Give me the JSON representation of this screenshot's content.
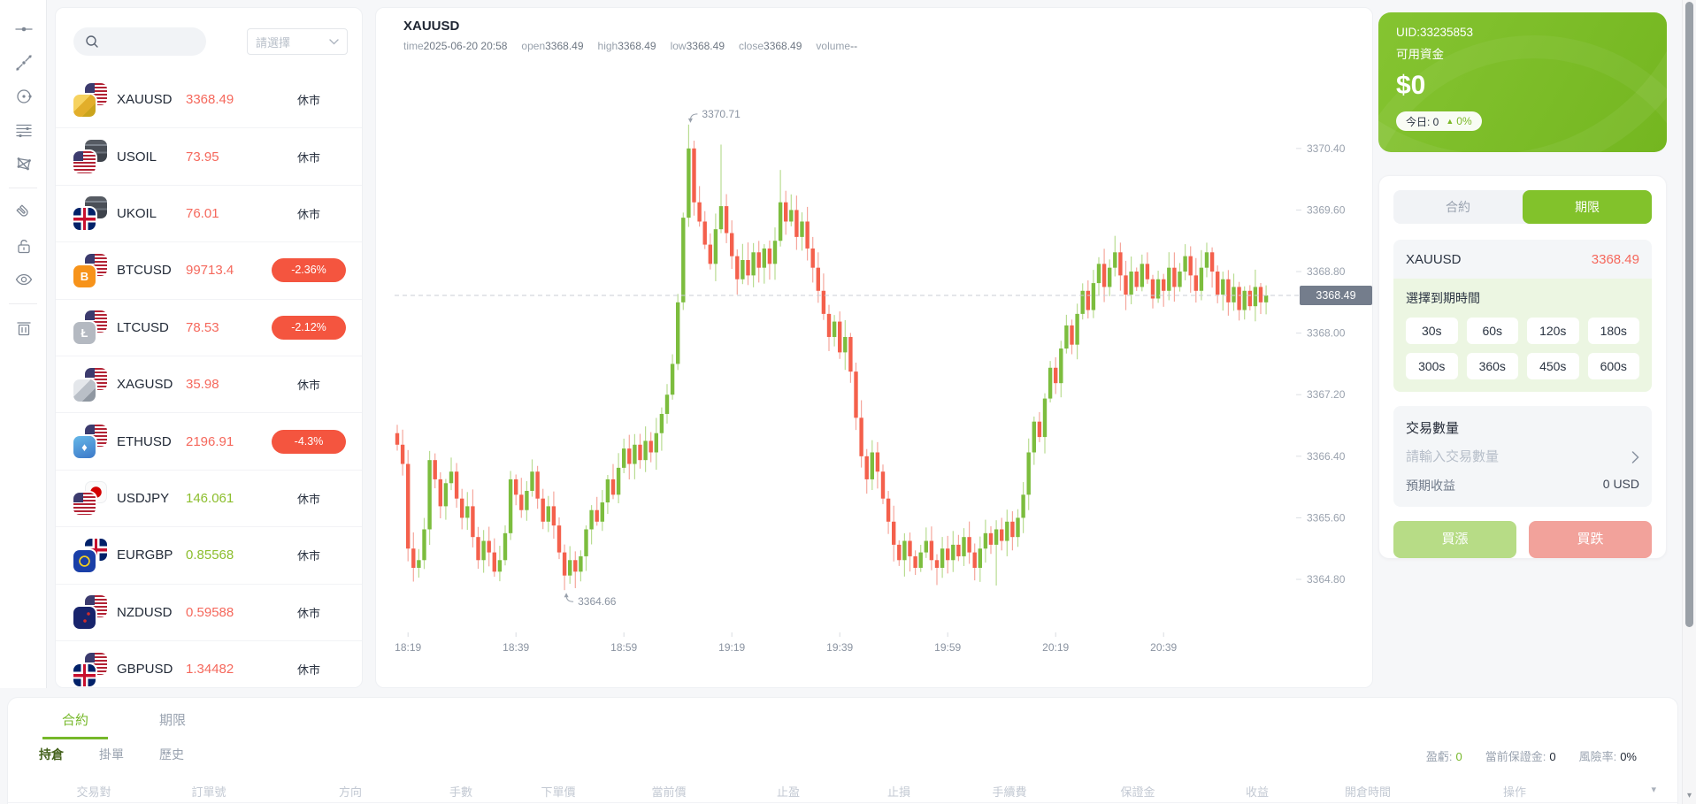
{
  "colors": {
    "accent_green": "#7cbe2f",
    "accent_red": "#f4553f",
    "candle_up": "#7cbd3e",
    "candle_down": "#f4604c",
    "wick_up": "#b9dc92",
    "wick_down": "#f5a79d",
    "price_up_text": "#8cbe2d",
    "price_down_text": "#f5685c"
  },
  "toolbar": {
    "icons": [
      {
        "name": "horizontal-line-tool"
      },
      {
        "name": "trend-line-tool"
      },
      {
        "name": "circle-tool"
      },
      {
        "name": "parallel-lines-tool"
      },
      {
        "name": "polygon-tool"
      },
      {
        "name": "magnet-tool"
      },
      {
        "name": "unlock-tool"
      },
      {
        "name": "eye-tool"
      },
      {
        "name": "trash-tool"
      }
    ]
  },
  "watchlist": {
    "search_value": "",
    "select_placeholder": "請選擇",
    "closed_label": "休市",
    "items": [
      {
        "symbol": "XAUUSD",
        "price": "3368.49",
        "dir": "down",
        "badge": "休市",
        "badge_type": "closed",
        "icons": {
          "back": "us-flag",
          "front": "gold"
        }
      },
      {
        "symbol": "USOIL",
        "price": "73.95",
        "dir": "down",
        "badge": "休市",
        "badge_type": "closed",
        "icons": {
          "back": "oil-barrel",
          "front": "us-flag"
        }
      },
      {
        "symbol": "UKOIL",
        "price": "76.01",
        "dir": "down",
        "badge": "休市",
        "badge_type": "closed",
        "icons": {
          "back": "oil-barrel",
          "front": "uk-flag"
        }
      },
      {
        "symbol": "BTCUSD",
        "price": "99713.4",
        "dir": "down",
        "badge": "-2.36%",
        "badge_type": "pct",
        "icons": {
          "back": "us-flag",
          "front": "btc",
          "glyph": "B"
        }
      },
      {
        "symbol": "LTCUSD",
        "price": "78.53",
        "dir": "down",
        "badge": "-2.12%",
        "badge_type": "pct",
        "icons": {
          "back": "us-flag",
          "front": "ltc",
          "glyph": "Ł"
        }
      },
      {
        "symbol": "XAGUSD",
        "price": "35.98",
        "dir": "down",
        "badge": "休市",
        "badge_type": "closed",
        "icons": {
          "back": "us-flag",
          "front": "silver"
        }
      },
      {
        "symbol": "ETHUSD",
        "price": "2196.91",
        "dir": "down",
        "badge": "-4.3%",
        "badge_type": "pct",
        "icons": {
          "back": "us-flag",
          "front": "eth",
          "glyph": "♦"
        }
      },
      {
        "symbol": "USDJPY",
        "price": "146.061",
        "dir": "up",
        "badge": "休市",
        "badge_type": "closed",
        "icons": {
          "back": "jp-flag",
          "front": "us-flag"
        }
      },
      {
        "symbol": "EURGBP",
        "price": "0.85568",
        "dir": "up",
        "badge": "休市",
        "badge_type": "closed",
        "icons": {
          "back": "uk-flag",
          "front": "eu-flag"
        }
      },
      {
        "symbol": "NZDUSD",
        "price": "0.59588",
        "dir": "down",
        "badge": "休市",
        "badge_type": "closed",
        "icons": {
          "back": "us-flag",
          "front": "nz-flag"
        }
      },
      {
        "symbol": "GBPUSD",
        "price": "1.34482",
        "dir": "down",
        "badge": "休市",
        "badge_type": "closed",
        "icons": {
          "back": "us-flag",
          "front": "uk-flag"
        }
      }
    ]
  },
  "chart": {
    "title": "XAUUSD",
    "info": [
      {
        "label": "time",
        "value": "2025-06-20 20:58"
      },
      {
        "label": "open",
        "value": "3368.49"
      },
      {
        "label": "high",
        "value": "3368.49"
      },
      {
        "label": "low",
        "value": "3368.49"
      },
      {
        "label": "close",
        "value": "3368.49"
      },
      {
        "label": "volume",
        "value": "--"
      }
    ]
  },
  "chart_data": {
    "type": "candlestick",
    "symbol": "XAUUSD",
    "interval": "1m",
    "title": "XAUUSD 1-minute candles",
    "ylim": [
      3364.16,
      3371.05
    ],
    "grid": false,
    "current_price": 3368.49,
    "current_price_label": "3368.49",
    "y_ticks": [
      "3370.40",
      "3369.60",
      "3368.80",
      "3368.00",
      "3367.20",
      "3366.40",
      "3365.60",
      "3364.80"
    ],
    "x_ticks": [
      {
        "label": "18:19",
        "index": 2
      },
      {
        "label": "18:39",
        "index": 22
      },
      {
        "label": "18:59",
        "index": 42
      },
      {
        "label": "19:19",
        "index": 62
      },
      {
        "label": "19:39",
        "index": 82
      },
      {
        "label": "19:59",
        "index": 102
      },
      {
        "label": "20:19",
        "index": 122
      },
      {
        "label": "20:39",
        "index": 142
      }
    ],
    "annotations": {
      "high": {
        "index": 54,
        "price": 3370.71,
        "label": "3370.71"
      },
      "low": {
        "index": 31,
        "price": 3364.66,
        "label": "3364.66"
      }
    },
    "first_open": 3366.7,
    "closes": [
      3366.55,
      3366.3,
      3365.2,
      3364.95,
      3365.05,
      3365.45,
      3366.35,
      3366.1,
      3365.75,
      3366.05,
      3366.2,
      3365.85,
      3365.6,
      3365.75,
      3365.35,
      3365.05,
      3365.3,
      3365.15,
      3364.9,
      3365.05,
      3365.4,
      3366.1,
      3365.9,
      3365.7,
      3365.95,
      3366.2,
      3365.85,
      3365.55,
      3365.75,
      3365.5,
      3365.15,
      3364.85,
      3365.05,
      3364.9,
      3365.1,
      3365.45,
      3365.7,
      3365.55,
      3365.8,
      3366.1,
      3365.9,
      3366.25,
      3366.5,
      3366.3,
      3366.55,
      3366.35,
      3366.6,
      3366.45,
      3366.7,
      3366.95,
      3367.2,
      3367.6,
      3368.4,
      3369.5,
      3370.4,
      3369.7,
      3369.45,
      3369.15,
      3368.9,
      3369.35,
      3369.65,
      3369.3,
      3369.0,
      3368.7,
      3368.95,
      3368.75,
      3369.05,
      3368.85,
      3369.1,
      3368.9,
      3369.2,
      3369.7,
      3369.45,
      3369.6,
      3369.25,
      3369.45,
      3369.1,
      3368.85,
      3368.55,
      3368.25,
      3367.95,
      3368.15,
      3367.75,
      3367.95,
      3367.5,
      3366.9,
      3366.4,
      3366.1,
      3366.45,
      3366.2,
      3365.85,
      3365.55,
      3365.25,
      3365.05,
      3365.3,
      3365.1,
      3364.95,
      3365.15,
      3365.3,
      3365.05,
      3364.95,
      3365.2,
      3365.05,
      3365.25,
      3365.1,
      3365.35,
      3365.15,
      3364.95,
      3365.2,
      3365.4,
      3365.25,
      3365.45,
      3365.3,
      3365.55,
      3365.35,
      3365.6,
      3365.9,
      3366.45,
      3366.85,
      3366.65,
      3367.15,
      3367.55,
      3367.35,
      3367.8,
      3368.1,
      3367.85,
      3368.25,
      3368.55,
      3368.3,
      3368.65,
      3368.9,
      3368.6,
      3368.85,
      3369.05,
      3368.75,
      3368.5,
      3368.8,
      3368.6,
      3368.9,
      3368.7,
      3368.45,
      3368.7,
      3368.55,
      3368.85,
      3368.6,
      3368.8,
      3369.0,
      3368.75,
      3368.55,
      3368.85,
      3369.05,
      3368.8,
      3368.5,
      3368.7,
      3368.4,
      3368.6,
      3368.3,
      3368.55,
      3368.35,
      3368.6,
      3368.4,
      3368.49
    ],
    "wick_overrides": {
      "31": {
        "low": 3364.66
      },
      "54": {
        "high": 3370.71
      },
      "60": {
        "high": 3370.45
      },
      "71": {
        "high": 3370.12
      },
      "111": {
        "low": 3364.72
      }
    }
  },
  "account": {
    "uid": "UID:33235853",
    "balance_label": "可用資金",
    "balance": "$0",
    "today_label": "今日: 0",
    "arrow_icon": "▲",
    "today_pct": "0%"
  },
  "trade_panel": {
    "tabs": [
      {
        "label": "合約",
        "active": false
      },
      {
        "label": "期限",
        "active": true
      }
    ],
    "symbol": "XAUUSD",
    "price": "3368.49",
    "expiry_label": "選擇到期時間",
    "durations": [
      "30s",
      "60s",
      "120s",
      "180s",
      "300s",
      "360s",
      "450s",
      "600s"
    ],
    "amount_label": "交易數量",
    "amount_placeholder": "請輸入交易數量",
    "profit_label": "預期收益",
    "profit_value": "0 USD",
    "buy_up_label": "買漲",
    "buy_down_label": "買跌"
  },
  "bottom": {
    "tabs": [
      {
        "label": "合約",
        "active": true
      },
      {
        "label": "期限",
        "active": false
      }
    ],
    "subtabs": [
      {
        "label": "持倉",
        "active": true
      },
      {
        "label": "掛單",
        "active": false
      },
      {
        "label": "歷史",
        "active": false
      }
    ],
    "stats": [
      {
        "label": "盈虧:",
        "value": "0",
        "highlight": true
      },
      {
        "label": "當前保證金:",
        "value": "0",
        "highlight": false
      },
      {
        "label": "風險率:",
        "value": "0%",
        "highlight": false
      }
    ],
    "columns": [
      "交易對",
      "訂單號",
      "方向",
      "手數",
      "下單價",
      "當前價",
      "止盈",
      "止損",
      "手續費",
      "保證金",
      "收益",
      "開倉時間",
      "操作"
    ],
    "sort_icon": "▾"
  }
}
